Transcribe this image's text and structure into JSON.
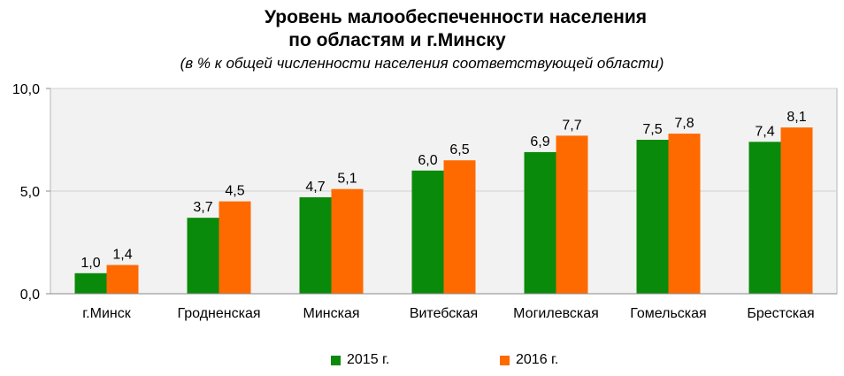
{
  "chart_data": {
    "type": "bar",
    "title_line1": "Уровень малообеспеченности населения",
    "title_line2": "по областям и г.Минску",
    "subtitle": "(в % к общей численности населения соответствующей области)",
    "categories": [
      "г.Минск",
      "Гродненская",
      "Минская",
      "Витебская",
      "Могилевская",
      "Гомельская",
      "Брестская"
    ],
    "series": [
      {
        "name": "2015 г.",
        "values": [
          1.0,
          3.7,
          4.7,
          6.0,
          6.9,
          7.5,
          7.4
        ],
        "labels": [
          "1,0",
          "3,7",
          "4,7",
          "6,0",
          "6,9",
          "7,5",
          "7,4"
        ],
        "color": "#0a8a0a"
      },
      {
        "name": "2016 г.",
        "values": [
          1.4,
          4.5,
          5.1,
          6.5,
          7.7,
          7.8,
          8.1
        ],
        "labels": [
          "1,4",
          "4,5",
          "5,1",
          "6,5",
          "7,7",
          "7,8",
          "8,1"
        ],
        "color": "#ff6a00"
      }
    ],
    "yticks": [
      0,
      5,
      10
    ],
    "ytick_labels": [
      "0,0",
      "5,0",
      "10,0"
    ],
    "ylim": [
      0,
      10
    ],
    "grid": true,
    "plot_background": "#f2f2f2",
    "legend_position": "bottom"
  }
}
